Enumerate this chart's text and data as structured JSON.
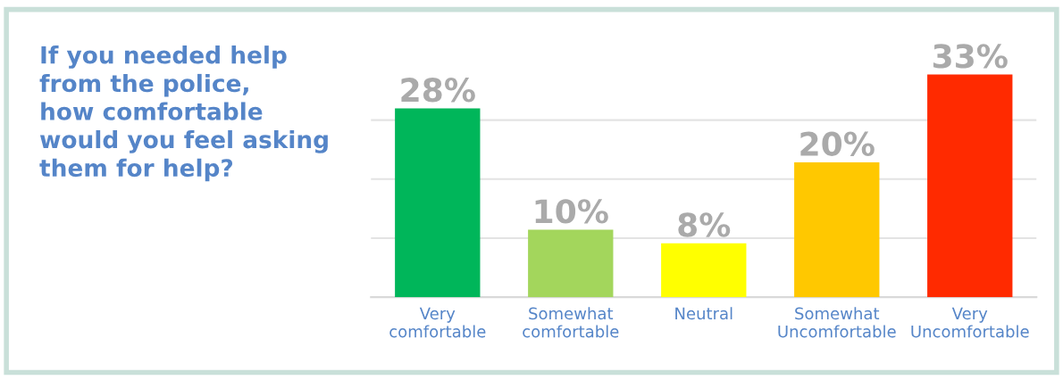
{
  "chart_data": {
    "type": "bar",
    "title": "If you needed help\nfrom the police,\nhow comfortable\nwould you feel asking\nthem for help?",
    "categories": [
      "Very\ncomfortable",
      "Somewhat\ncomfortable",
      "Neutral",
      "Somewhat\nUncomfortable",
      "Very\nUncomfortable"
    ],
    "values": [
      28,
      10,
      8,
      20,
      33
    ],
    "colors": [
      "#00b65a",
      "#a3d65c",
      "#ffff00",
      "#ffc800",
      "#ff2a00"
    ],
    "yticks": [
      {
        "value": 0,
        "label": null
      },
      {
        "value": 8.75,
        "label": null
      },
      {
        "value": 17.5,
        "label": null
      },
      {
        "value": 26.25,
        "label": null
      }
    ],
    "tick_labels": "x",
    "grid": "y",
    "data_labels": true,
    "value_labels": [
      "28%",
      "10%",
      "8%",
      "20%",
      "33%"
    ]
  }
}
